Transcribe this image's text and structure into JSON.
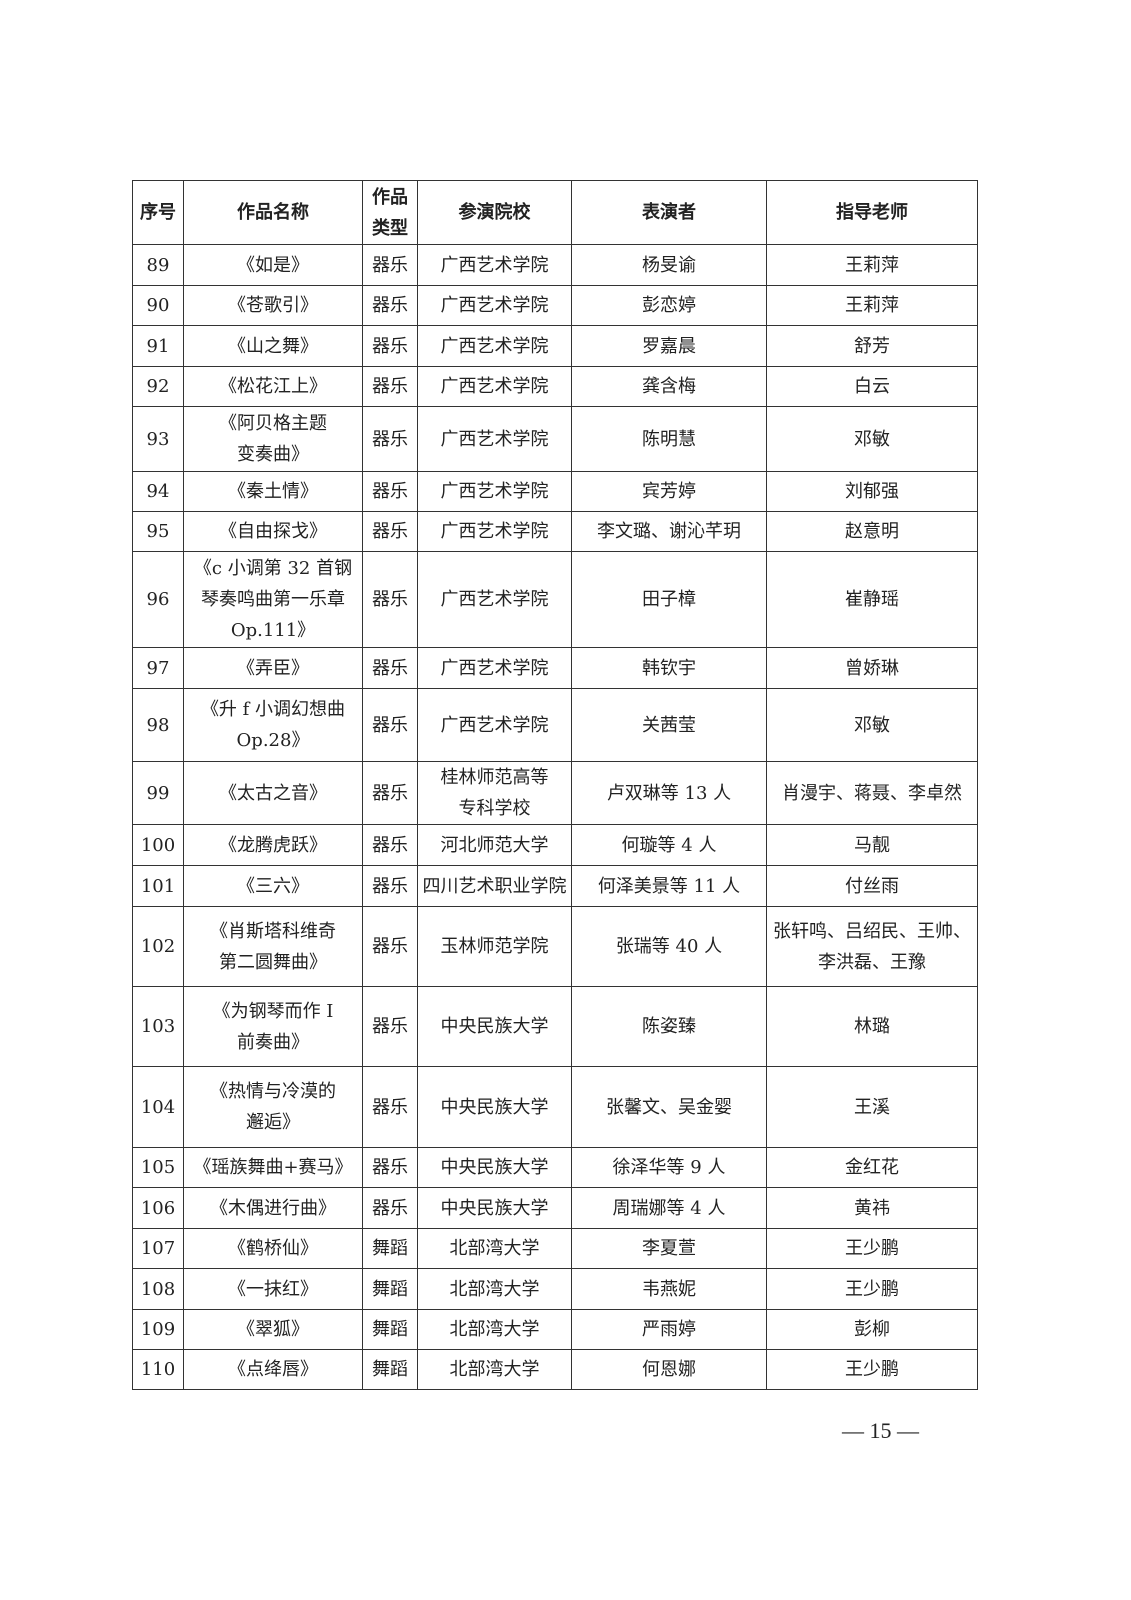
{
  "table": {
    "headers": [
      "序号",
      "作品名称",
      "作品\n类型",
      "参演院校",
      "表演者",
      "指导老师"
    ],
    "rows": [
      [
        "89",
        "《如是》",
        "器乐",
        "广西艺术学院",
        "杨旻谕",
        "王莉萍"
      ],
      [
        "90",
        "《苍歌引》",
        "器乐",
        "广西艺术学院",
        "彭恋婷",
        "王莉萍"
      ],
      [
        "91",
        "《山之舞》",
        "器乐",
        "广西艺术学院",
        "罗嘉晨",
        "舒芳"
      ],
      [
        "92",
        "《松花江上》",
        "器乐",
        "广西艺术学院",
        "龚含梅",
        "白云"
      ],
      [
        "93",
        "《阿贝格主题\n变奏曲》",
        "器乐",
        "广西艺术学院",
        "陈明慧",
        "邓敏"
      ],
      [
        "94",
        "《秦土情》",
        "器乐",
        "广西艺术学院",
        "宾芳婷",
        "刘郁强"
      ],
      [
        "95",
        "《自由探戈》",
        "器乐",
        "广西艺术学院",
        "李文璐、谢沁芊玥",
        "赵意明"
      ],
      [
        "96",
        "《c 小调第 32 首钢\n琴奏鸣曲第一乐章\nOp.111》",
        "器乐",
        "广西艺术学院",
        "田子樟",
        "崔静瑶"
      ],
      [
        "97",
        "《弄臣》",
        "器乐",
        "广西艺术学院",
        "韩钦宇",
        "曾娇琳"
      ],
      [
        "98",
        "《升 f 小调幻想曲\nOp.28》",
        "器乐",
        "广西艺术学院",
        "关茜莹",
        "邓敏"
      ],
      [
        "99",
        "《太古之音》",
        "器乐",
        "桂林师范高等\n专科学校",
        "卢双琳等 13 人",
        "肖漫宇、蒋聂、李卓然"
      ],
      [
        "100",
        "《龙腾虎跃》",
        "器乐",
        "河北师范大学",
        "何璇等 4 人",
        "马靓"
      ],
      [
        "101",
        "《三六》",
        "器乐",
        "四川艺术职业学院",
        "何泽美景等 11 人",
        "付丝雨"
      ],
      [
        "102",
        "《肖斯塔科维奇\n第二圆舞曲》",
        "器乐",
        "玉林师范学院",
        "张瑞等 40 人",
        "张轩鸣、吕绍民、王帅、\n李洪磊、王豫"
      ],
      [
        "103",
        "《为钢琴而作 I\n前奏曲》",
        "器乐",
        "中央民族大学",
        "陈姿臻",
        "林璐"
      ],
      [
        "104",
        "《热情与冷漠的\n邂逅》",
        "器乐",
        "中央民族大学",
        "张馨文、吴金婴",
        "王溪"
      ],
      [
        "105",
        "《瑶族舞曲+赛马》",
        "器乐",
        "中央民族大学",
        "徐泽华等 9 人",
        "金红花"
      ],
      [
        "106",
        "《木偶进行曲》",
        "器乐",
        "中央民族大学",
        "周瑞娜等 4 人",
        "黄祎"
      ],
      [
        "107",
        "《鹤桥仙》",
        "舞蹈",
        "北部湾大学",
        "李夏萱",
        "王少鹏"
      ],
      [
        "108",
        "《一抹红》",
        "舞蹈",
        "北部湾大学",
        "韦燕妮",
        "王少鹏"
      ],
      [
        "109",
        "《翠狐》",
        "舞蹈",
        "北部湾大学",
        "严雨婷",
        "彭柳"
      ],
      [
        "110",
        "《点绛唇》",
        "舞蹈",
        "北部湾大学",
        "何恩娜",
        "王少鹏"
      ]
    ]
  },
  "page_number": "— 15 —"
}
